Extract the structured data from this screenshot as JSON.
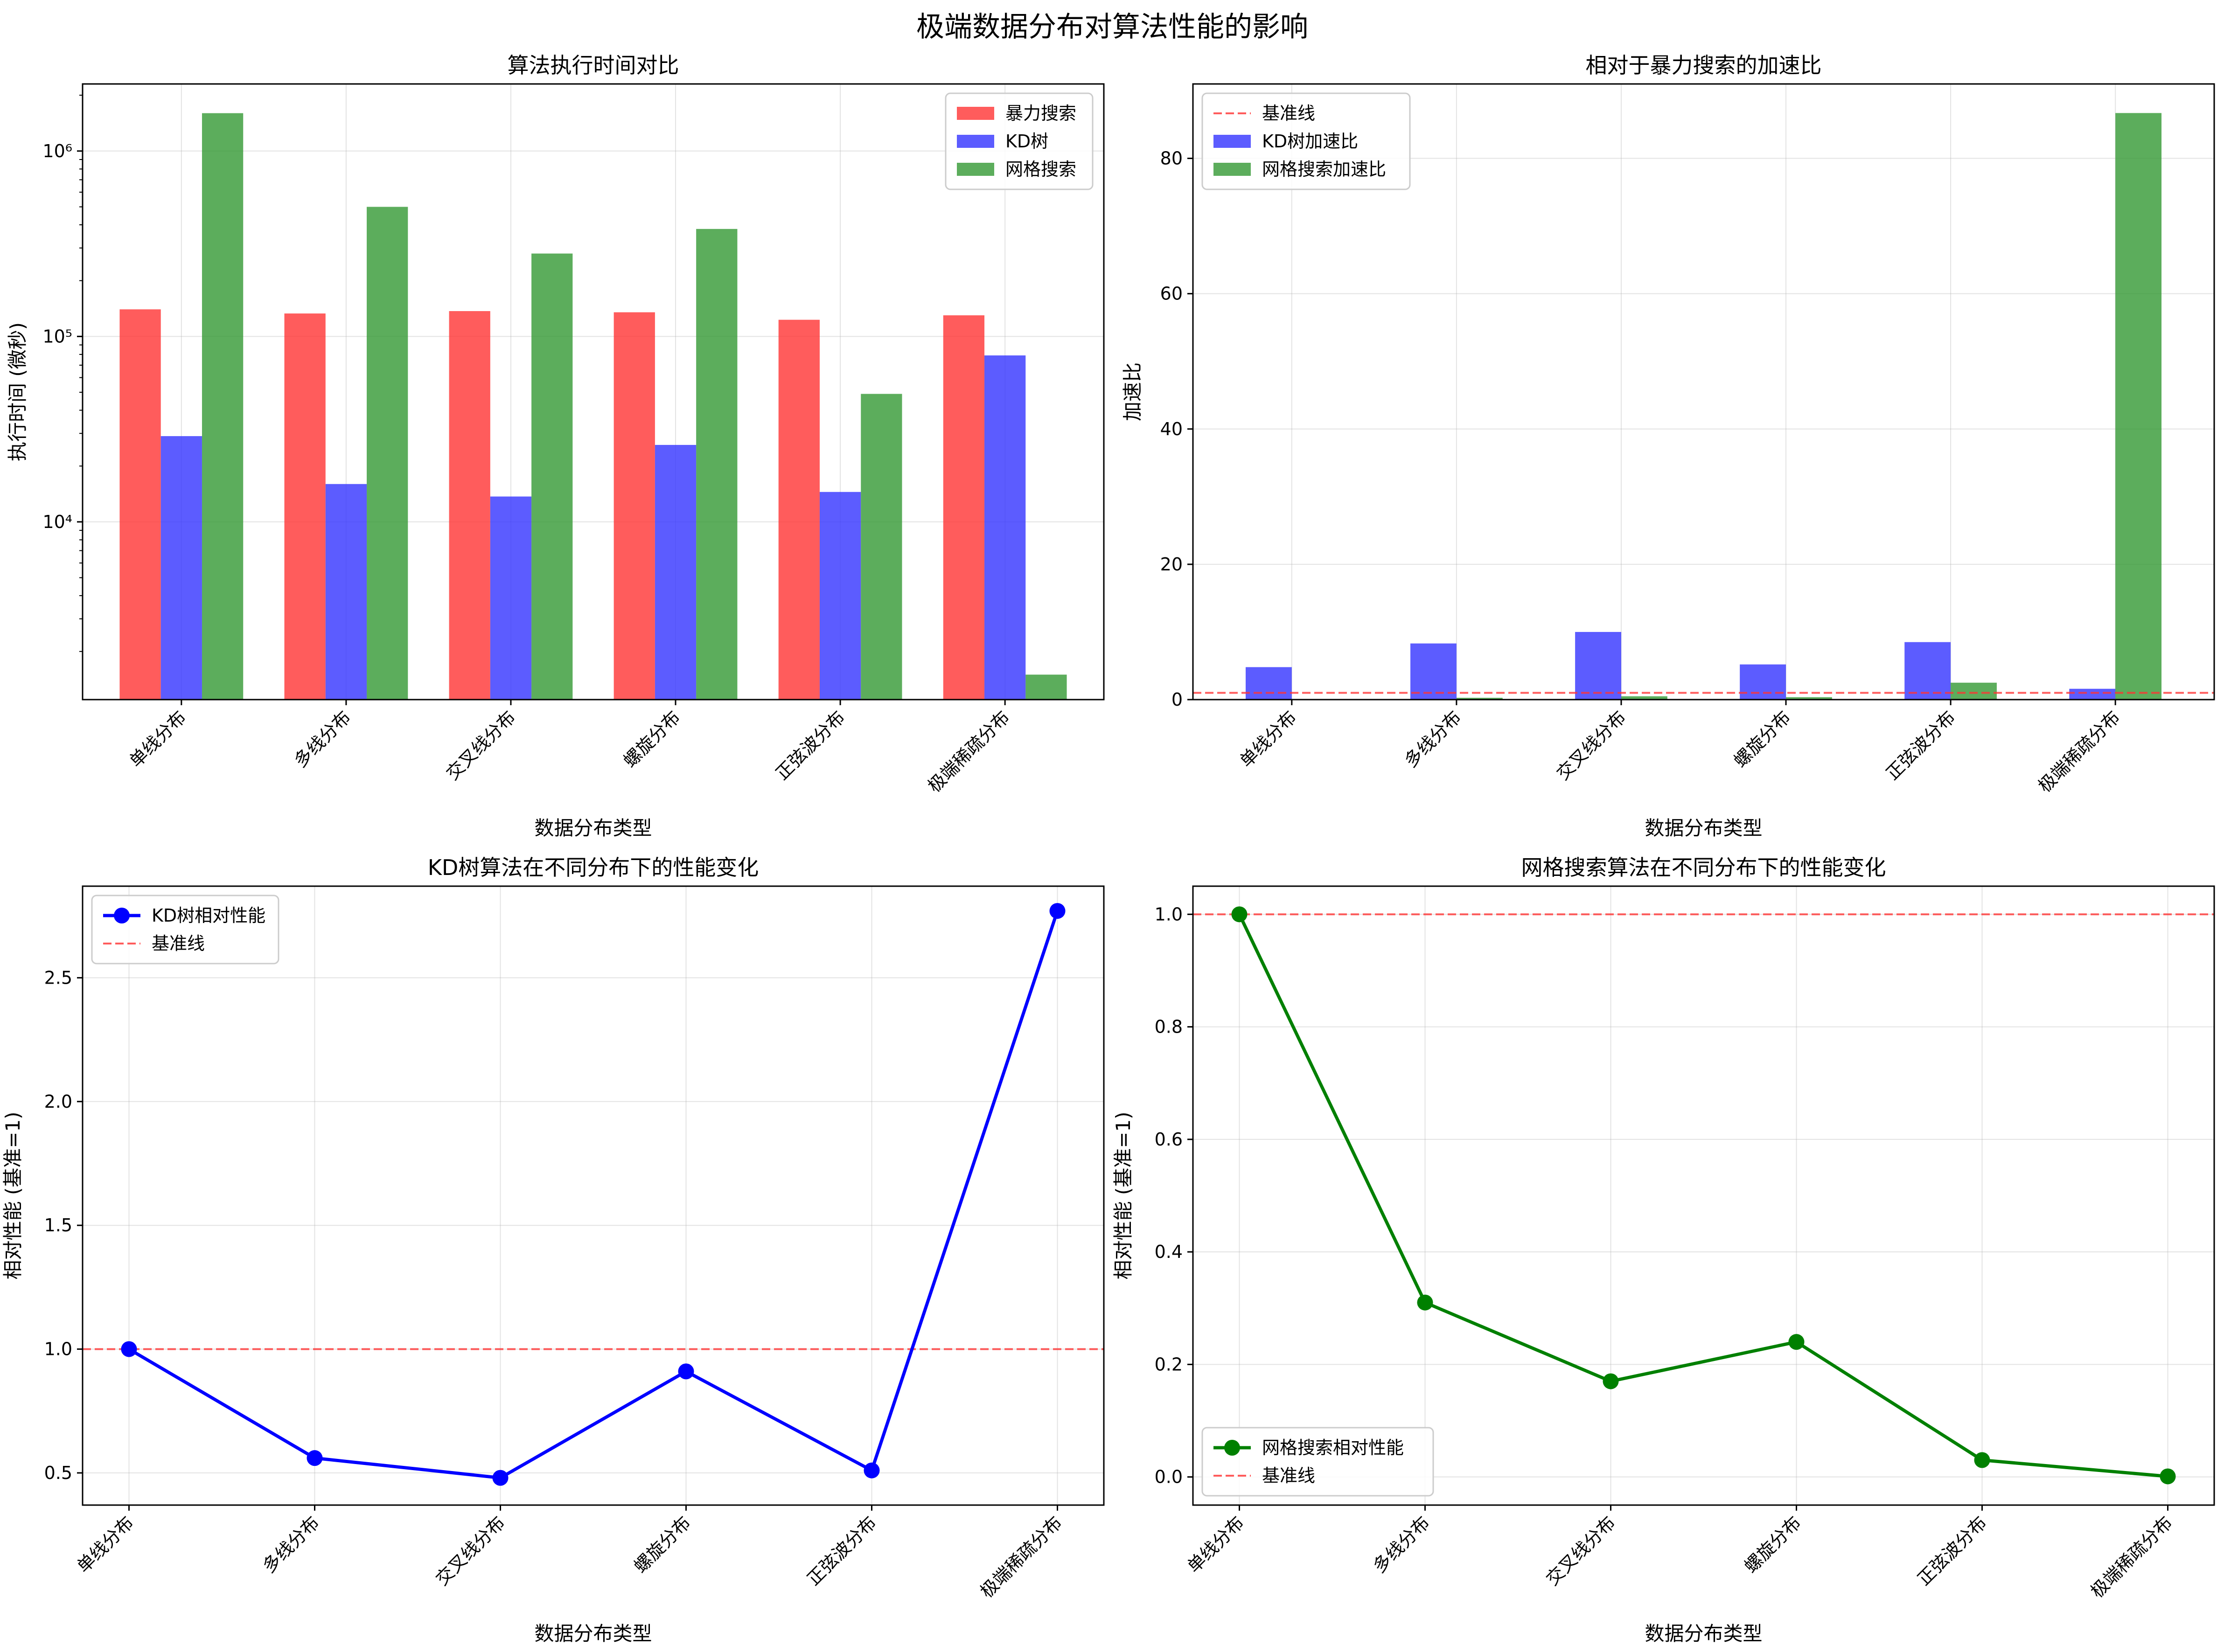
{
  "figure": {
    "title": "极端数据分布对算法性能的影响"
  },
  "colors": {
    "brute": "#ff3333",
    "kd": "#3333ff",
    "grid_search": "#339933",
    "baseline": "#ff3333",
    "kd_line": "#0000ff",
    "grid_line": "#008000"
  },
  "chart_data": [
    {
      "type": "bar",
      "title": "算法执行时间对比",
      "xlabel": "数据分布类型",
      "ylabel": "执行时间 (微秒)",
      "yscale": "log",
      "ylim": [
        1100,
        2300000
      ],
      "yticks": [
        10000,
        100000,
        1000000
      ],
      "ytick_labels": [
        "10⁴",
        "10⁵",
        "10⁶"
      ],
      "categories": [
        "单线分布",
        "多线分布",
        "交叉线分布",
        "螺旋分布",
        "正弦波分布",
        "极端稀疏分布"
      ],
      "series": [
        {
          "name": "暴力搜索",
          "color": "#ff3333",
          "values": [
            140000,
            133000,
            137000,
            135000,
            123000,
            130000
          ]
        },
        {
          "name": "KD树",
          "color": "#3333ff",
          "values": [
            29000,
            16000,
            13700,
            26000,
            14500,
            79000
          ]
        },
        {
          "name": "网格搜索",
          "color": "#339933",
          "values": [
            1600000,
            500000,
            280000,
            380000,
            49000,
            1500
          ]
        }
      ],
      "legend": "top-right",
      "grid": true
    },
    {
      "type": "bar",
      "title": "相对于暴力搜索的加速比",
      "xlabel": "数据分布类型",
      "ylabel": "加速比",
      "ylim": [
        0,
        91
      ],
      "yticks": [
        0,
        20,
        40,
        60,
        80
      ],
      "categories": [
        "单线分布",
        "多线分布",
        "交叉线分布",
        "螺旋分布",
        "正弦波分布",
        "极端稀疏分布"
      ],
      "baseline": {
        "name": "基准线",
        "value": 1
      },
      "series": [
        {
          "name": "KD树加速比",
          "color": "#3333ff",
          "values": [
            4.8,
            8.3,
            10.0,
            5.2,
            8.5,
            1.6
          ]
        },
        {
          "name": "网格搜索加速比",
          "color": "#339933",
          "values": [
            0.09,
            0.27,
            0.49,
            0.36,
            2.5,
            86.7
          ]
        }
      ],
      "legend": "top-left",
      "grid": true
    },
    {
      "type": "line",
      "title": "KD树算法在不同分布下的性能变化",
      "xlabel": "数据分布类型",
      "ylabel": "相对性能 (基准=1)",
      "ylim": [
        0.37,
        2.87
      ],
      "yticks": [
        0.5,
        1.0,
        1.5,
        2.0,
        2.5
      ],
      "ytick_labels": [
        "0.5",
        "1.0",
        "1.5",
        "2.0",
        "2.5"
      ],
      "categories": [
        "单线分布",
        "多线分布",
        "交叉线分布",
        "螺旋分布",
        "正弦波分布",
        "极端稀疏分布"
      ],
      "baseline": {
        "name": "基准线",
        "value": 1
      },
      "series": [
        {
          "name": "KD树相对性能",
          "color": "#0000ff",
          "values": [
            1.0,
            0.56,
            0.48,
            0.91,
            0.51,
            2.77
          ]
        }
      ],
      "legend": "top-left",
      "grid": true
    },
    {
      "type": "line",
      "title": "网格搜索算法在不同分布下的性能变化",
      "xlabel": "数据分布类型",
      "ylabel": "相对性能 (基准=1)",
      "ylim": [
        -0.05,
        1.05
      ],
      "yticks": [
        0.0,
        0.2,
        0.4,
        0.6,
        0.8,
        1.0
      ],
      "ytick_labels": [
        "0.0",
        "0.2",
        "0.4",
        "0.6",
        "0.8",
        "1.0"
      ],
      "categories": [
        "单线分布",
        "多线分布",
        "交叉线分布",
        "螺旋分布",
        "正弦波分布",
        "极端稀疏分布"
      ],
      "baseline": {
        "name": "基准线",
        "value": 1
      },
      "series": [
        {
          "name": "网格搜索相对性能",
          "color": "#008000",
          "values": [
            1.0,
            0.31,
            0.17,
            0.24,
            0.03,
            0.001
          ]
        }
      ],
      "legend": "bottom-left",
      "grid": true
    }
  ]
}
